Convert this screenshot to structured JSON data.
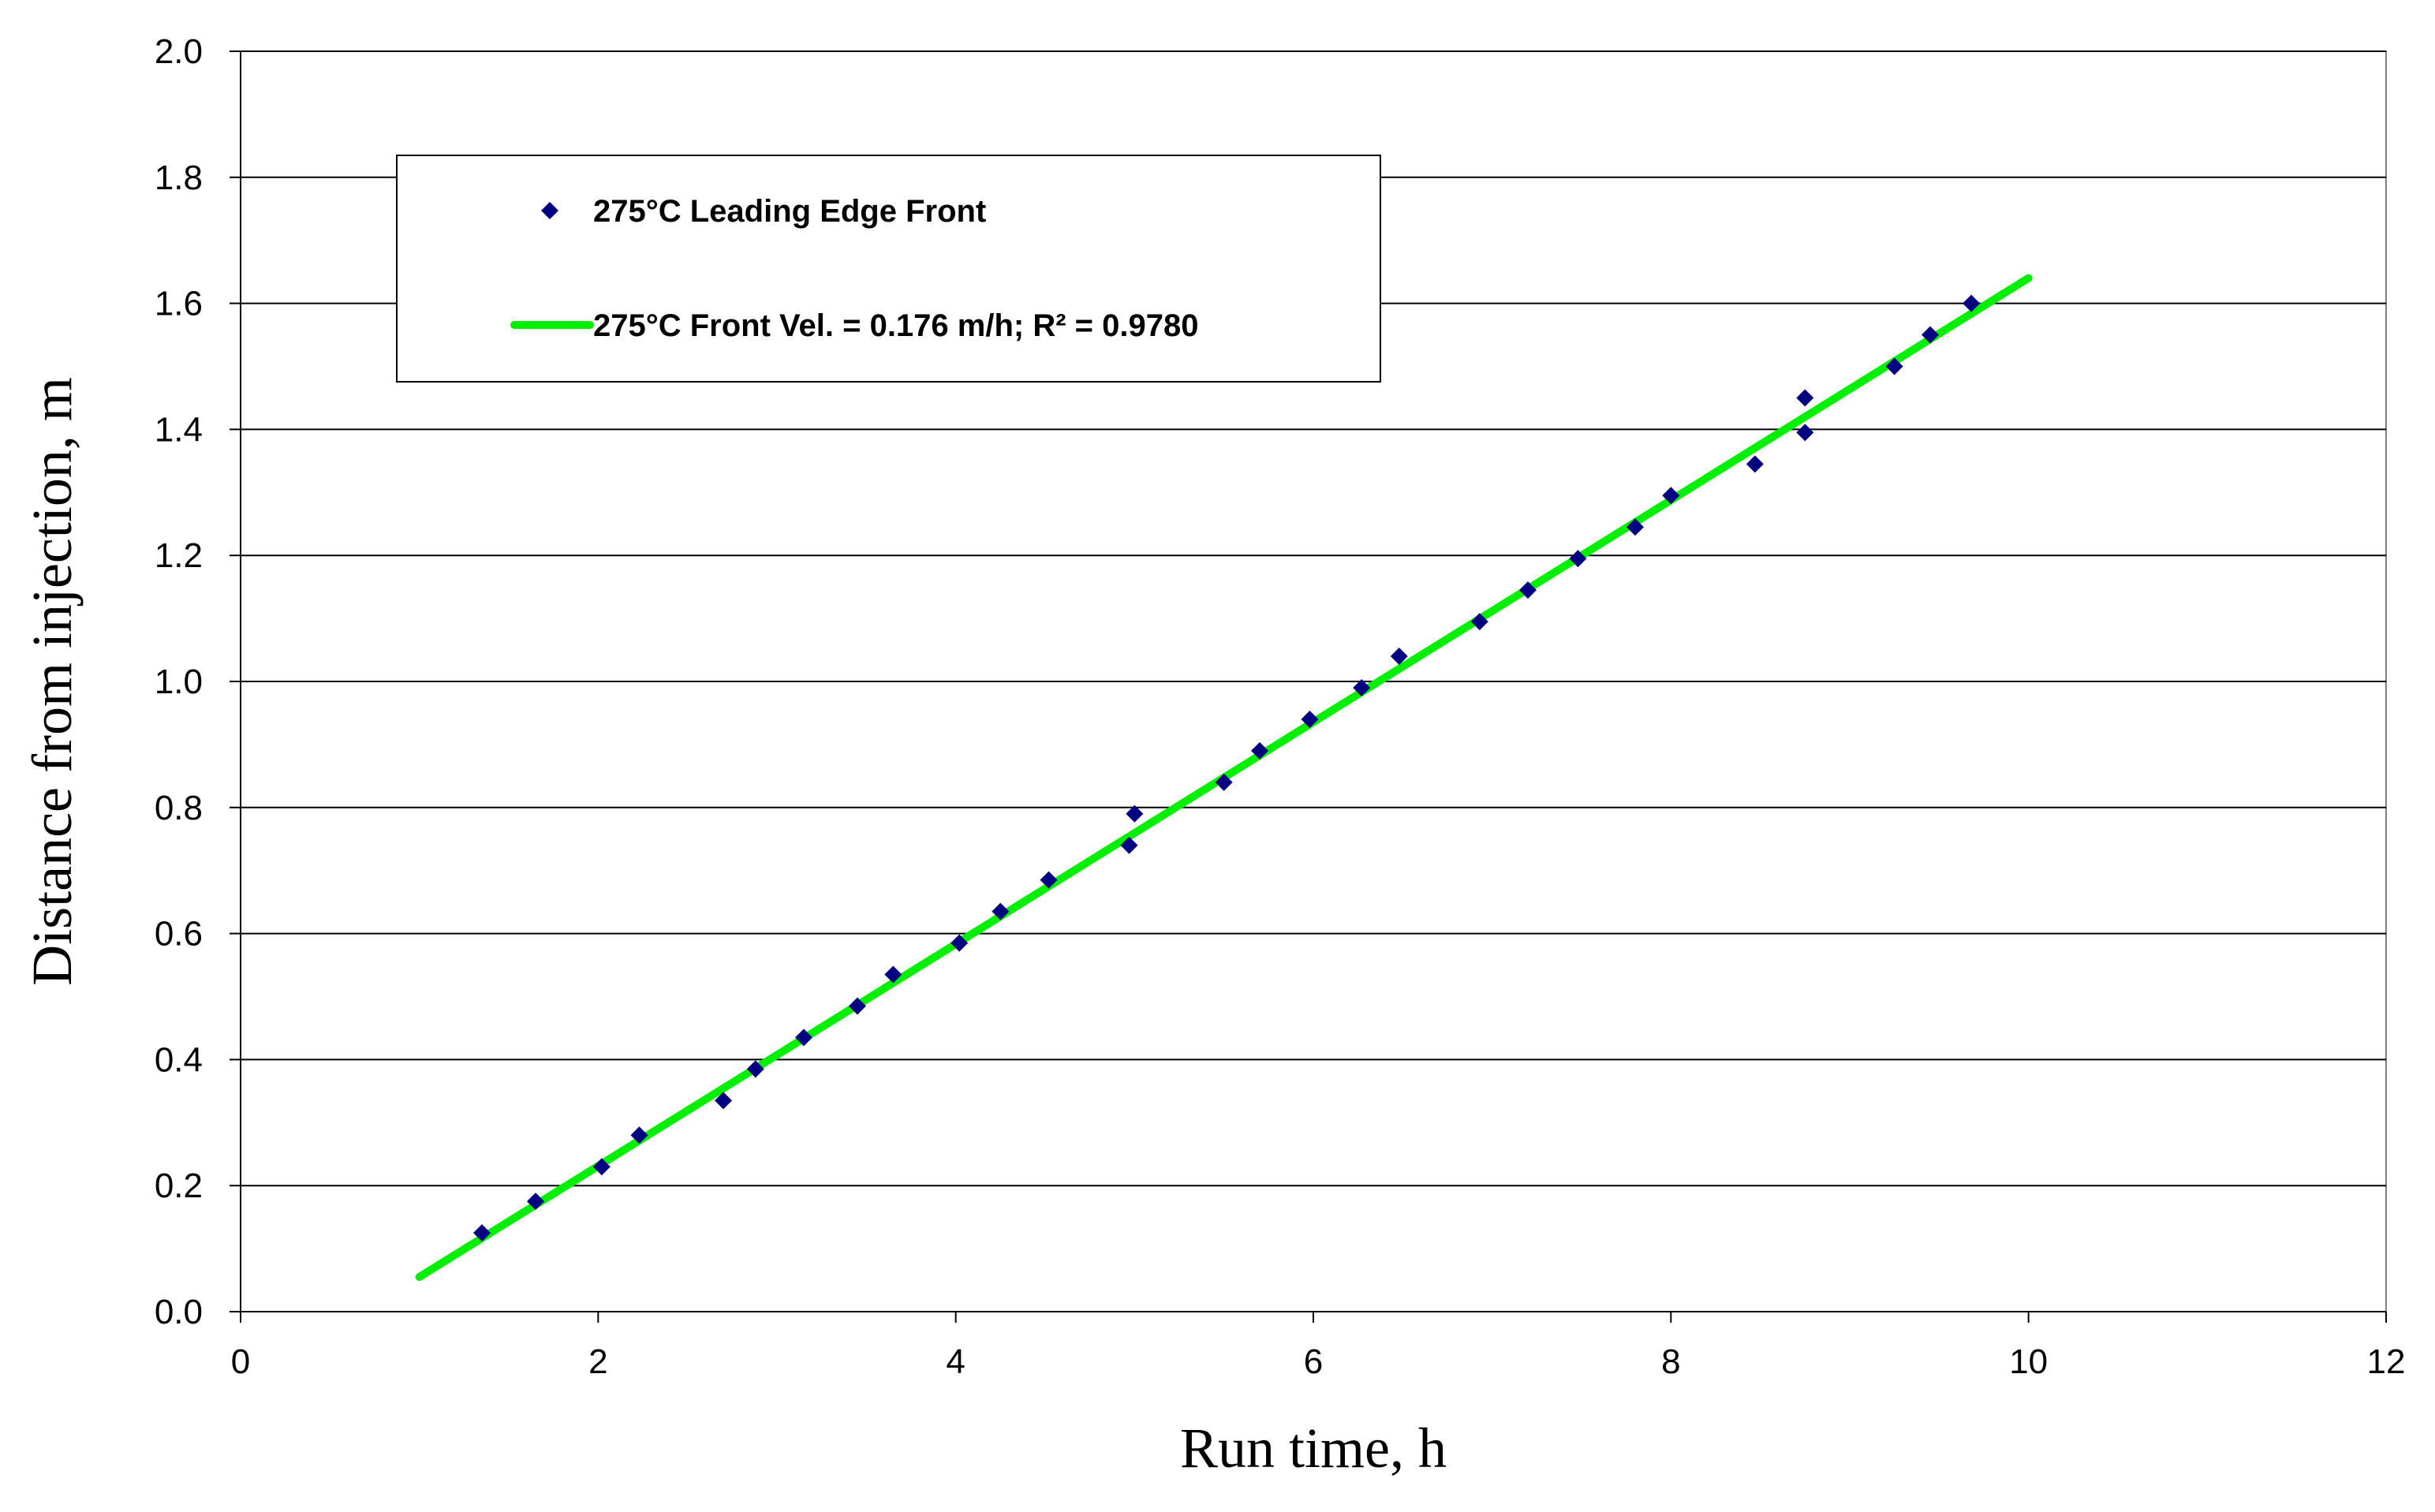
{
  "chart_data": {
    "type": "scatter",
    "title": "",
    "xlabel": "Run time, h",
    "ylabel": "Distance from injection, m",
    "xlim": [
      0,
      12
    ],
    "ylim": [
      0,
      2.0
    ],
    "xticks": [
      "0",
      "2",
      "4",
      "6",
      "8",
      "10",
      "12"
    ],
    "yticks": [
      "0.0",
      "0.2",
      "0.4",
      "0.6",
      "0.8",
      "1.0",
      "1.2",
      "1.4",
      "1.6",
      "1.8",
      "2.0"
    ],
    "grid": "horizontal",
    "legend_position": "top-left",
    "series": [
      {
        "name": "275°C Leading Edge Front",
        "kind": "scatter",
        "marker": "diamond",
        "color": "#000080",
        "x": [
          1.35,
          1.65,
          2.02,
          2.23,
          2.7,
          2.88,
          3.15,
          3.45,
          3.65,
          4.02,
          4.25,
          4.52,
          4.97,
          5.0,
          5.5,
          5.7,
          5.98,
          6.27,
          6.48,
          6.93,
          7.2,
          7.48,
          7.8,
          8.0,
          8.47,
          8.75,
          8.75,
          9.25,
          9.45,
          9.68
        ],
        "y": [
          0.125,
          0.175,
          0.23,
          0.28,
          0.335,
          0.385,
          0.435,
          0.485,
          0.535,
          0.585,
          0.635,
          0.685,
          0.74,
          0.79,
          0.84,
          0.89,
          0.94,
          0.99,
          1.04,
          1.095,
          1.145,
          1.195,
          1.245,
          1.295,
          1.345,
          1.395,
          1.45,
          1.5,
          1.55,
          1.6
        ]
      },
      {
        "name": "275°C Front Vel. = 0.176 m/h; R² = 0.9780",
        "kind": "line",
        "color": "#00EE00",
        "x": [
          1.0,
          10.0
        ],
        "y": [
          0.055,
          1.64
        ]
      }
    ]
  }
}
